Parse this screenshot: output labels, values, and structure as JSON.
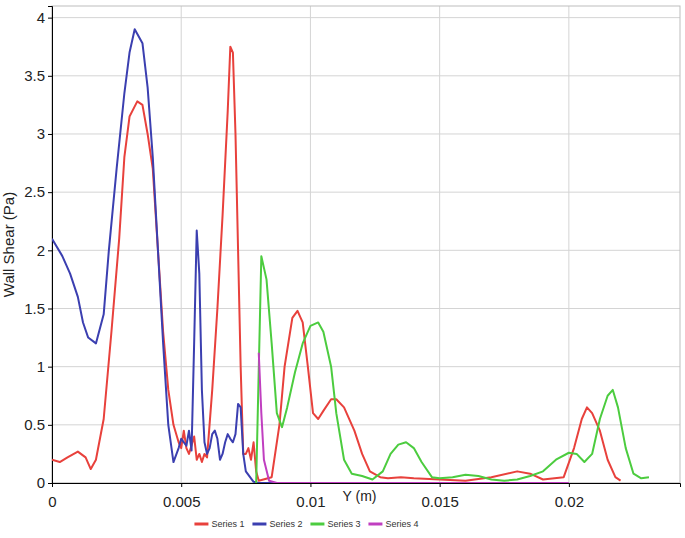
{
  "chart_data": {
    "type": "line",
    "x_label": "Y (m)",
    "y_label": "Wall Shear (Pa)",
    "xlim": [
      0,
      0.0243
    ],
    "ylim": [
      0,
      4.1
    ],
    "xticks": [
      0,
      0.005,
      0.01,
      0.015,
      0.02
    ],
    "yticks": [
      0,
      0.5,
      1,
      1.5,
      2,
      2.5,
      3,
      3.5,
      4
    ],
    "grid": true,
    "legend": "bottom",
    "series": [
      {
        "name": "Series 1",
        "color": "#e8413c",
        "x": [
          0,
          0.0003,
          0.0006,
          0.001,
          0.0013,
          0.0015,
          0.0017,
          0.002,
          0.0023,
          0.0026,
          0.0028,
          0.003,
          0.0033,
          0.0035,
          0.0037,
          0.0039,
          0.0041,
          0.0043,
          0.0045,
          0.0047,
          0.0049,
          0.005,
          0.0051,
          0.0052,
          0.0053,
          0.0055,
          0.0056,
          0.0057,
          0.0058,
          0.0059,
          0.006,
          0.0062,
          0.0064,
          0.0066,
          0.0068,
          0.0069,
          0.007,
          0.0071,
          0.0072,
          0.0073,
          0.0074,
          0.0075,
          0.0076,
          0.0077,
          0.0078,
          0.0079,
          0.008,
          0.0085,
          0.0088,
          0.009,
          0.0093,
          0.0095,
          0.0097,
          0.0099,
          0.0101,
          0.0103,
          0.0105,
          0.0108,
          0.011,
          0.0113,
          0.0117,
          0.012,
          0.0123,
          0.0127,
          0.013,
          0.0135,
          0.014,
          0.015,
          0.016,
          0.017,
          0.018,
          0.0185,
          0.019,
          0.0198,
          0.0202,
          0.0205,
          0.0207,
          0.0209,
          0.0212,
          0.0215,
          0.0218,
          0.022
        ],
        "values": [
          0.2,
          0.18,
          0.22,
          0.27,
          0.22,
          0.12,
          0.2,
          0.55,
          1.3,
          2.1,
          2.8,
          3.15,
          3.28,
          3.25,
          3.0,
          2.7,
          2.0,
          1.3,
          0.8,
          0.5,
          0.35,
          0.3,
          0.45,
          0.3,
          0.25,
          0.4,
          0.2,
          0.25,
          0.18,
          0.25,
          0.22,
          0.8,
          1.5,
          2.3,
          3.2,
          3.75,
          3.7,
          3.0,
          2.0,
          1.0,
          0.25,
          0.25,
          0.3,
          0.2,
          0.35,
          0.1,
          0.02,
          0.05,
          0.5,
          1.0,
          1.42,
          1.48,
          1.38,
          1.0,
          0.6,
          0.55,
          0.62,
          0.72,
          0.72,
          0.65,
          0.45,
          0.25,
          0.1,
          0.05,
          0.04,
          0.05,
          0.04,
          0.03,
          0.02,
          0.05,
          0.1,
          0.08,
          0.03,
          0.05,
          0.3,
          0.55,
          0.65,
          0.6,
          0.45,
          0.2,
          0.05,
          0.02
        ]
      },
      {
        "name": "Series 2",
        "color": "#3b3fb0",
        "x": [
          0,
          0.0004,
          0.0007,
          0.001,
          0.0012,
          0.0014,
          0.0017,
          0.002,
          0.0022,
          0.0025,
          0.0028,
          0.003,
          0.0032,
          0.0035,
          0.0037,
          0.0039,
          0.0041,
          0.0043,
          0.0045,
          0.0047,
          0.0049,
          0.005,
          0.0052,
          0.0053,
          0.0054,
          0.0055,
          0.0056,
          0.0057,
          0.0058,
          0.0059,
          0.006,
          0.0061,
          0.0062,
          0.0063,
          0.0064,
          0.0065,
          0.0066,
          0.0067,
          0.0068,
          0.0069,
          0.007,
          0.0071,
          0.0072,
          0.0073,
          0.0074,
          0.0075,
          0.0078,
          0.008,
          0.009,
          0.01
        ],
        "values": [
          2.1,
          1.95,
          1.8,
          1.6,
          1.38,
          1.25,
          1.2,
          1.45,
          2.0,
          2.7,
          3.35,
          3.7,
          3.9,
          3.78,
          3.4,
          2.8,
          2.0,
          1.2,
          0.5,
          0.18,
          0.3,
          0.38,
          0.32,
          0.45,
          0.28,
          1.2,
          2.17,
          1.8,
          0.8,
          0.35,
          0.25,
          0.3,
          0.42,
          0.45,
          0.38,
          0.2,
          0.25,
          0.35,
          0.42,
          0.38,
          0.35,
          0.42,
          0.68,
          0.65,
          0.25,
          0.1,
          0.01,
          0,
          0,
          0
        ]
      },
      {
        "name": "Series 3",
        "color": "#4ccc3f",
        "x": [
          0.0079,
          0.0081,
          0.0083,
          0.0085,
          0.0087,
          0.0089,
          0.0091,
          0.0094,
          0.0097,
          0.01,
          0.0103,
          0.0105,
          0.0108,
          0.011,
          0.0113,
          0.0116,
          0.012,
          0.0124,
          0.0128,
          0.0131,
          0.0134,
          0.0137,
          0.014,
          0.0143,
          0.0147,
          0.015,
          0.0155,
          0.016,
          0.0165,
          0.017,
          0.0175,
          0.018,
          0.0185,
          0.019,
          0.0195,
          0.02,
          0.0203,
          0.0206,
          0.0209,
          0.0212,
          0.0215,
          0.0217,
          0.0219,
          0.0222,
          0.0225,
          0.0228,
          0.0231
        ],
        "values": [
          0,
          1.95,
          1.75,
          1.2,
          0.6,
          0.48,
          0.65,
          0.95,
          1.2,
          1.35,
          1.38,
          1.3,
          1.0,
          0.6,
          0.2,
          0.08,
          0.06,
          0.03,
          0.1,
          0.25,
          0.33,
          0.35,
          0.3,
          0.18,
          0.05,
          0.04,
          0.05,
          0.07,
          0.06,
          0.03,
          0.02,
          0.03,
          0.06,
          0.1,
          0.2,
          0.26,
          0.25,
          0.18,
          0.25,
          0.55,
          0.75,
          0.8,
          0.65,
          0.3,
          0.08,
          0.04,
          0.05
        ]
      },
      {
        "name": "Series 4",
        "color": "#c03fc0",
        "x": [
          0.008,
          0.0081,
          0.0082,
          0.0084,
          0.0087,
          0.01,
          0.015,
          0.02
        ],
        "values": [
          1.12,
          0.6,
          0.2,
          0.02,
          0,
          0,
          0,
          0
        ]
      }
    ]
  }
}
